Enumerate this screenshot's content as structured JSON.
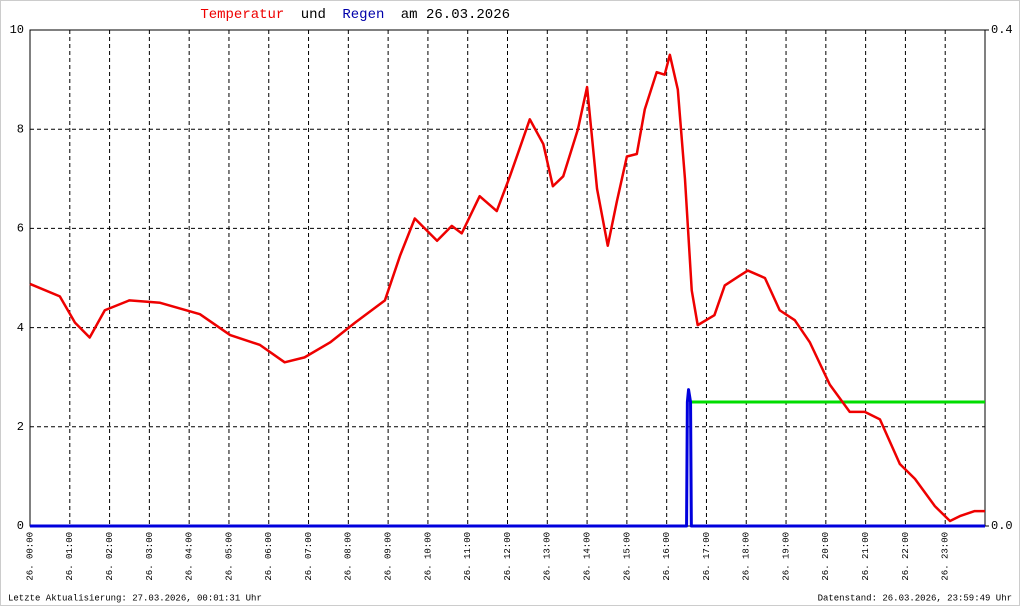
{
  "chart_data": {
    "type": "line",
    "title_parts": [
      "und",
      "am 26.03.2026"
    ],
    "footer_left": "Letzte Aktualisierung: 27.03.2026, 00:01:31 Uhr",
    "footer_right": "Datenstand: 26.03.2026, 23:59:49 Uhr",
    "grid": true,
    "xlim": [
      0,
      24
    ],
    "xticks": [
      {
        "value": 0,
        "label": "26. 00:00"
      },
      {
        "value": 1,
        "label": "26. 01:00"
      },
      {
        "value": 2,
        "label": "26. 02:00"
      },
      {
        "value": 3,
        "label": "26. 03:00"
      },
      {
        "value": 4,
        "label": "26. 04:00"
      },
      {
        "value": 5,
        "label": "26. 05:00"
      },
      {
        "value": 6,
        "label": "26. 06:00"
      },
      {
        "value": 7,
        "label": "26. 07:00"
      },
      {
        "value": 8,
        "label": "26. 08:00"
      },
      {
        "value": 9,
        "label": "26. 09:00"
      },
      {
        "value": 10,
        "label": "26. 10:00"
      },
      {
        "value": 11,
        "label": "26. 11:00"
      },
      {
        "value": 12,
        "label": "26. 12:00"
      },
      {
        "value": 13,
        "label": "26. 13:00"
      },
      {
        "value": 14,
        "label": "26. 14:00"
      },
      {
        "value": 15,
        "label": "26. 15:00"
      },
      {
        "value": 16,
        "label": "26. 16:00"
      },
      {
        "value": 17,
        "label": "26. 17:00"
      },
      {
        "value": 18,
        "label": "26. 18:00"
      },
      {
        "value": 19,
        "label": "26. 19:00"
      },
      {
        "value": 20,
        "label": "26. 20:00"
      },
      {
        "value": 21,
        "label": "26. 21:00"
      },
      {
        "value": 22,
        "label": "26. 22:00"
      },
      {
        "value": 23,
        "label": "26. 23:00"
      }
    ],
    "ylim": [
      0,
      10
    ],
    "yticks": [
      0,
      2,
      4,
      6,
      8,
      10
    ],
    "y2lim": [
      0,
      0.4
    ],
    "y2ticks": [
      {
        "value": 0,
        "label": "0.0"
      },
      0.4
    ],
    "series": [
      {
        "name": "Temperatur",
        "color": "#ee0000",
        "axis": "y",
        "x": [
          0,
          0.75,
          1.13,
          1.5,
          1.88,
          2.5,
          3.27,
          4.27,
          5.03,
          5.78,
          6.4,
          6.9,
          7.54,
          8.17,
          8.92,
          9.3,
          9.67,
          10.23,
          10.6,
          10.85,
          11.3,
          11.73,
          12.06,
          12.3,
          12.56,
          12.9,
          13.14,
          13.4,
          13.77,
          14.0,
          14.25,
          14.52,
          14.75,
          15.0,
          15.25,
          15.45,
          15.75,
          15.95,
          16.08,
          16.28,
          16.46,
          16.63,
          16.78,
          17.2,
          17.46,
          17.84,
          18.04,
          18.47,
          18.84,
          19.22,
          19.6,
          20.1,
          20.6,
          20.98,
          21.36,
          21.86,
          22.24,
          22.74,
          23.12,
          23.37,
          23.74,
          24.0
        ],
        "values": [
          4.88,
          4.63,
          4.1,
          3.8,
          4.35,
          4.55,
          4.5,
          4.27,
          3.85,
          3.65,
          3.3,
          3.4,
          3.7,
          4.1,
          4.55,
          5.45,
          6.2,
          5.75,
          6.05,
          5.9,
          6.65,
          6.35,
          7.05,
          7.6,
          8.2,
          7.7,
          6.85,
          7.05,
          8.0,
          8.85,
          6.8,
          5.65,
          6.55,
          7.45,
          7.5,
          8.4,
          9.15,
          9.1,
          9.5,
          8.8,
          7.0,
          4.75,
          4.05,
          4.25,
          4.85,
          5.05,
          5.15,
          5.0,
          4.35,
          4.15,
          3.7,
          2.85,
          2.3,
          2.3,
          2.15,
          1.25,
          0.95,
          0.4,
          0.1,
          0.2,
          0.3,
          0.3
        ]
      },
      {
        "name": "Regen",
        "color": "#0000dd",
        "axis": "y2",
        "x": [
          0,
          16.5,
          16.52,
          16.55,
          16.6,
          16.62,
          24
        ],
        "values": [
          0,
          0,
          0.1,
          0.11,
          0.1,
          0,
          0
        ]
      },
      {
        "color": "#00dd00",
        "axis": "y2",
        "x": [
          16.6,
          24
        ],
        "values": [
          0.1,
          0.1
        ]
      }
    ]
  }
}
